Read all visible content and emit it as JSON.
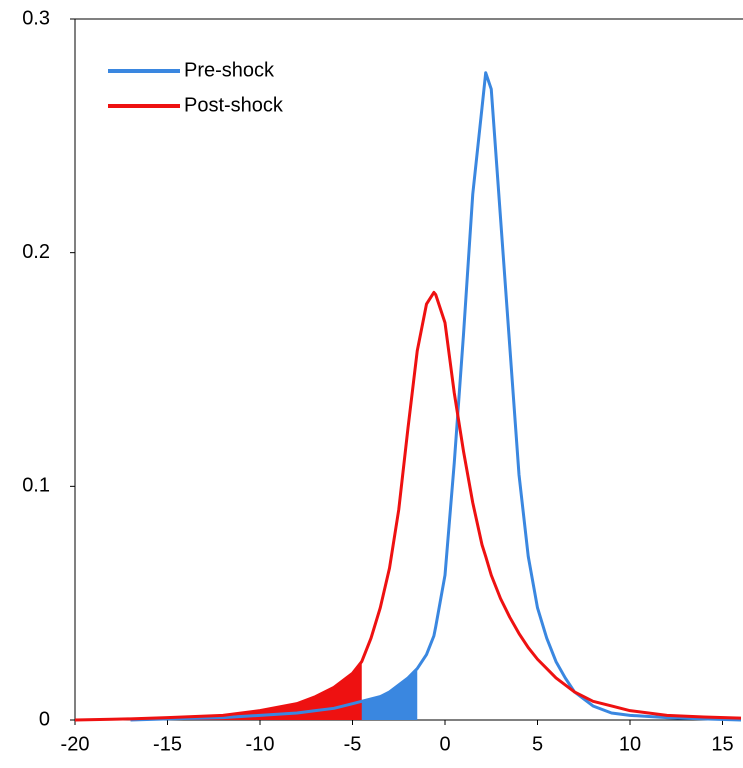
{
  "chart_data": {
    "type": "line",
    "x": [
      -20,
      -18,
      -17,
      -15,
      -12,
      -10,
      -8,
      -7,
      -6,
      -5,
      -4.5,
      -4,
      -3.5,
      -3,
      -2.5,
      -2,
      -1.5,
      -1,
      -0.6,
      -0.5,
      0,
      0.5,
      1,
      1.5,
      2,
      2.2,
      2.5,
      3,
      3.5,
      4,
      4.5,
      5,
      5.5,
      6,
      6.5,
      7,
      8,
      9,
      10,
      12,
      14,
      16
    ],
    "series": [
      {
        "name": "Pre-shock",
        "color": "#3a87e0",
        "shade_below": -1.5,
        "values": [
          null,
          null,
          0,
          0.0005,
          0.001,
          0.002,
          0.003,
          0.004,
          0.005,
          0.007,
          0.008,
          0.009,
          0.01,
          0.012,
          0.015,
          0.018,
          0.022,
          0.028,
          0.036,
          0.04,
          0.062,
          0.11,
          0.165,
          0.225,
          0.262,
          0.277,
          0.27,
          0.215,
          0.16,
          0.105,
          0.07,
          0.048,
          0.035,
          0.025,
          0.018,
          0.012,
          0.006,
          0.003,
          0.002,
          0.001,
          0.0005,
          0
        ]
      },
      {
        "name": "Post-shock",
        "color": "#ee1111",
        "shade_below": -4.5,
        "values": [
          0,
          0.0003,
          0.0005,
          0.001,
          0.002,
          0.004,
          0.007,
          0.01,
          0.014,
          0.02,
          0.025,
          0.035,
          0.048,
          0.065,
          0.09,
          0.125,
          0.158,
          0.178,
          0.183,
          0.182,
          0.17,
          0.14,
          0.115,
          0.093,
          0.075,
          0.07,
          0.062,
          0.052,
          0.044,
          0.037,
          0.031,
          0.026,
          0.022,
          0.018,
          0.015,
          0.012,
          0.008,
          0.006,
          0.004,
          0.002,
          0.0013,
          0.0008
        ]
      }
    ],
    "xlim": [
      -20,
      16
    ],
    "ylim": [
      0,
      0.3
    ],
    "xticks": [
      -20,
      -15,
      -10,
      -5,
      0,
      5,
      10,
      15
    ],
    "yticks": [
      0,
      0.1,
      0.2,
      0.3
    ],
    "legend": "upper-left"
  }
}
